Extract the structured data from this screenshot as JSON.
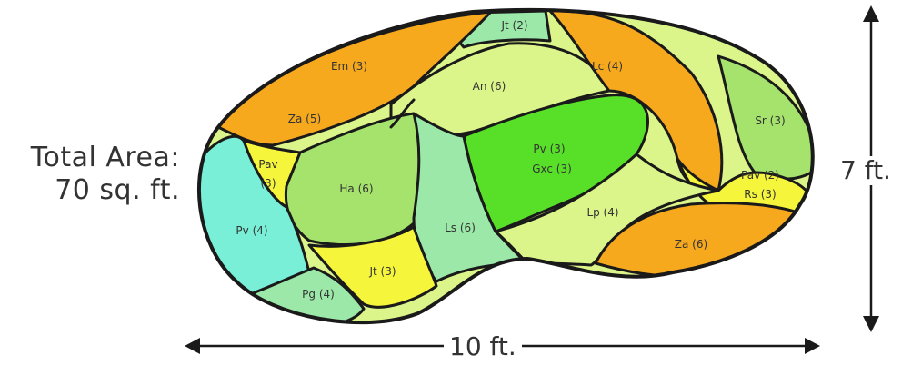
{
  "total_area": {
    "line1": "Total Area:",
    "line2": "70 sq. ft."
  },
  "dimensions": {
    "width": "10 ft.",
    "height": "7 ft."
  },
  "colors": {
    "orange": "#f7a91e",
    "light_green": "#a5e36d",
    "yellow_green": "#dcf58a",
    "bright_green": "#58e029",
    "aqua": "#78efd6",
    "yellow": "#f5f53b",
    "mint": "#9be8a8"
  },
  "regions": {
    "em": {
      "label": "Em (3)"
    },
    "jt_top": {
      "label": "Jt (2)"
    },
    "za_left": {
      "label": "Za (5)"
    },
    "an": {
      "label": "An (6)"
    },
    "lc": {
      "label": "Lc (4)"
    },
    "sr": {
      "label": "Sr (3)"
    },
    "pav_left": {
      "line1": "Pav",
      "line2": "(3)"
    },
    "ha": {
      "label": "Ha (6)"
    },
    "pv_gxc": {
      "line1": "Pv (3)",
      "line2": "Gxc (3)"
    },
    "pav_rs": {
      "line1": "Pav (2)",
      "line2": "Rs (3)"
    },
    "pv_left": {
      "label": "Pv (4)"
    },
    "ls": {
      "label": "Ls (6)"
    },
    "lp": {
      "label": "Lp (4)"
    },
    "za_right": {
      "label": "Za (6)"
    },
    "jt_bottom": {
      "label": "Jt (3)"
    },
    "pg": {
      "label": "Pg (4)"
    }
  }
}
